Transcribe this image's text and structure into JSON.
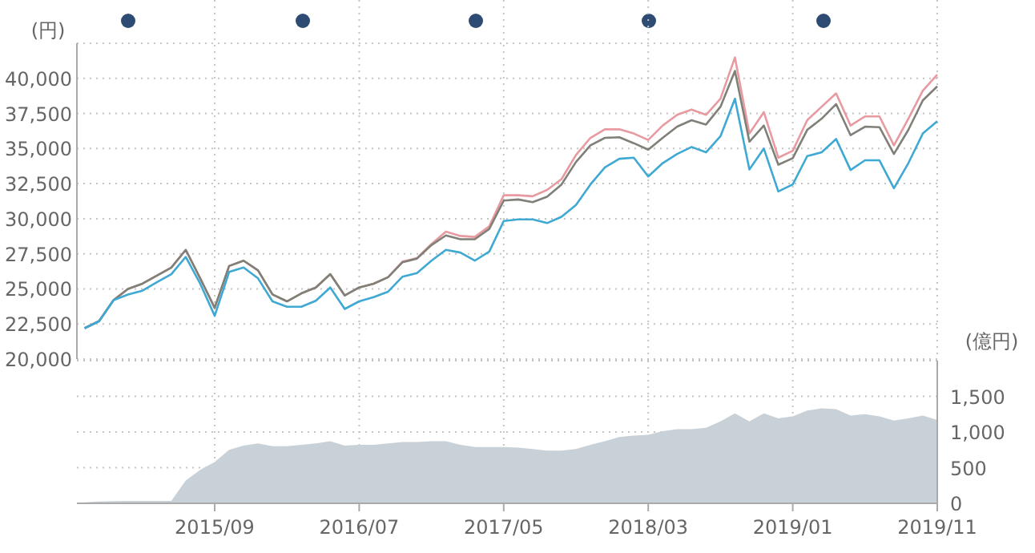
{
  "chart_data": [
    {
      "type": "line",
      "ylabel": "(円)",
      "x": [
        "2014-12",
        "2015-01",
        "2015-02",
        "2015-03",
        "2015-04",
        "2015-05",
        "2015-06",
        "2015-07",
        "2015-08",
        "2015-09",
        "2015-10",
        "2015-11",
        "2015-12",
        "2016-01",
        "2016-02",
        "2016-03",
        "2016-04",
        "2016-05",
        "2016-06",
        "2016-07",
        "2016-08",
        "2016-09",
        "2016-10",
        "2016-11",
        "2016-12",
        "2017-01",
        "2017-02",
        "2017-03",
        "2017-04",
        "2017-05",
        "2017-06",
        "2017-07",
        "2017-08",
        "2017-09",
        "2017-10",
        "2017-11",
        "2017-12",
        "2018-01",
        "2018-02",
        "2018-03",
        "2018-04",
        "2018-05",
        "2018-06",
        "2018-07",
        "2018-08",
        "2018-09",
        "2018-10",
        "2018-11",
        "2018-12",
        "2019-01",
        "2019-02",
        "2019-03",
        "2019-04",
        "2019-05",
        "2019-06",
        "2019-07",
        "2019-08",
        "2019-09",
        "2019-10",
        "2019-11"
      ],
      "series": [
        {
          "color": "#e89aa0",
          "values": [
            22200,
            22700,
            24200,
            25000,
            25370,
            25940,
            26520,
            27780,
            25750,
            23650,
            26630,
            27010,
            26320,
            24600,
            24110,
            24680,
            25100,
            26050,
            24530,
            25100,
            25370,
            25830,
            26950,
            27200,
            28200,
            29080,
            28770,
            28700,
            29460,
            31670,
            31670,
            31600,
            32050,
            32820,
            34540,
            35760,
            36370,
            36370,
            36070,
            35610,
            36640,
            37400,
            37780,
            37400,
            38550,
            41490,
            36070,
            37590,
            34350,
            34840,
            37020,
            37980,
            38930,
            36640,
            37290,
            37290,
            35230,
            37130,
            39120,
            40270
          ]
        },
        {
          "color": "#7f8078",
          "values": [
            22200,
            22700,
            24200,
            25000,
            25370,
            25940,
            26520,
            27780,
            25750,
            23650,
            26630,
            27010,
            26320,
            24600,
            24110,
            24680,
            25100,
            26050,
            24530,
            25100,
            25370,
            25830,
            26900,
            27160,
            28120,
            28810,
            28540,
            28540,
            29270,
            31290,
            31370,
            31180,
            31560,
            32440,
            34040,
            35230,
            35760,
            35800,
            35380,
            34920,
            35760,
            36560,
            37020,
            36710,
            37980,
            40530,
            35490,
            36640,
            33850,
            34310,
            36330,
            37130,
            38170,
            35950,
            36560,
            36520,
            34610,
            36330,
            38430,
            39430
          ]
        },
        {
          "color": "#3fa9d4",
          "values": [
            22200,
            22700,
            24200,
            24600,
            24870,
            25480,
            26050,
            27280,
            25370,
            23080,
            26210,
            26520,
            25750,
            24110,
            23730,
            23730,
            24150,
            25100,
            23570,
            24110,
            24410,
            24800,
            25870,
            26130,
            27010,
            27780,
            27590,
            27010,
            27660,
            29840,
            29950,
            29950,
            29690,
            30140,
            30980,
            32440,
            33660,
            34270,
            34350,
            33010,
            33960,
            34610,
            35110,
            34730,
            35880,
            38550,
            33510,
            35000,
            31940,
            32440,
            34460,
            34730,
            35680,
            33470,
            34160,
            34160,
            32170,
            33960,
            36070,
            36940
          ]
        }
      ],
      "xlim": [
        "2014-11-15",
        "2019-11"
      ],
      "xticks": [
        {
          "value": "2015-09",
          "label": null
        },
        {
          "value": "2016-07",
          "label": null
        },
        {
          "value": "2017-05",
          "label": null
        },
        {
          "value": "2018-03",
          "label": null
        },
        {
          "value": "2019-01",
          "label": null
        },
        {
          "value": "2019-11",
          "label": null
        }
      ],
      "ylim": [
        20000,
        42500
      ],
      "yticks": [
        {
          "value": 20000,
          "label": "20,000"
        },
        {
          "value": 22500,
          "label": "22,500"
        },
        {
          "value": 25000,
          "label": "25,000"
        },
        {
          "value": 27500,
          "label": "27,500"
        },
        {
          "value": 30000,
          "label": "30,000"
        },
        {
          "value": 32500,
          "label": "32,500"
        },
        {
          "value": 35000,
          "label": "35,000"
        },
        {
          "value": 37500,
          "label": "37,500"
        },
        {
          "value": 40000,
          "label": "40,000"
        },
        {
          "value": 42500,
          "label": null
        }
      ],
      "grid": true,
      "tick_labels": "y"
    },
    {
      "type": "area",
      "ylabel": "(億円)",
      "color": "#c8d1d7",
      "x": [
        "2014-12",
        "2015-01",
        "2015-02",
        "2015-03",
        "2015-04",
        "2015-05",
        "2015-06",
        "2015-07",
        "2015-08",
        "2015-09",
        "2015-10",
        "2015-11",
        "2015-12",
        "2016-01",
        "2016-02",
        "2016-03",
        "2016-04",
        "2016-05",
        "2016-06",
        "2016-07",
        "2016-08",
        "2016-09",
        "2016-10",
        "2016-11",
        "2016-12",
        "2017-01",
        "2017-02",
        "2017-03",
        "2017-04",
        "2017-05",
        "2017-06",
        "2017-07",
        "2017-08",
        "2017-09",
        "2017-10",
        "2017-11",
        "2017-12",
        "2018-01",
        "2018-02",
        "2018-03",
        "2018-04",
        "2018-05",
        "2018-06",
        "2018-07",
        "2018-08",
        "2018-09",
        "2018-10",
        "2018-11",
        "2018-12",
        "2019-01",
        "2019-02",
        "2019-03",
        "2019-04",
        "2019-05",
        "2019-06",
        "2019-07",
        "2019-08",
        "2019-09",
        "2019-10",
        "2019-11"
      ],
      "values": [
        15,
        25,
        30,
        35,
        35,
        35,
        35,
        320,
        470,
        580,
        750,
        810,
        840,
        800,
        800,
        820,
        840,
        870,
        810,
        820,
        820,
        840,
        860,
        860,
        870,
        870,
        820,
        790,
        790,
        790,
        780,
        760,
        740,
        740,
        760,
        820,
        870,
        930,
        950,
        960,
        1010,
        1040,
        1040,
        1060,
        1150,
        1260,
        1150,
        1260,
        1190,
        1220,
        1300,
        1330,
        1320,
        1230,
        1250,
        1220,
        1160,
        1190,
        1230,
        1170
      ],
      "xlim": [
        "2014-11-15",
        "2019-11"
      ],
      "xticks": [
        {
          "value": "2015-09",
          "label": "2015/09"
        },
        {
          "value": "2016-07",
          "label": "2016/07"
        },
        {
          "value": "2017-05",
          "label": "2017/05"
        },
        {
          "value": "2018-03",
          "label": "2018/03"
        },
        {
          "value": "2019-01",
          "label": "2019/01"
        },
        {
          "value": "2019-11",
          "label": "2019/11"
        }
      ],
      "ylim": [
        0,
        2000
      ],
      "yticks": [
        0,
        {
          "value": 500,
          "label": "500"
        },
        {
          "value": 1000,
          "label": "1,000"
        },
        {
          "value": 1500,
          "label": "1,500"
        },
        {
          "value": 2000,
          "label": null
        }
      ],
      "grid": true
    }
  ]
}
